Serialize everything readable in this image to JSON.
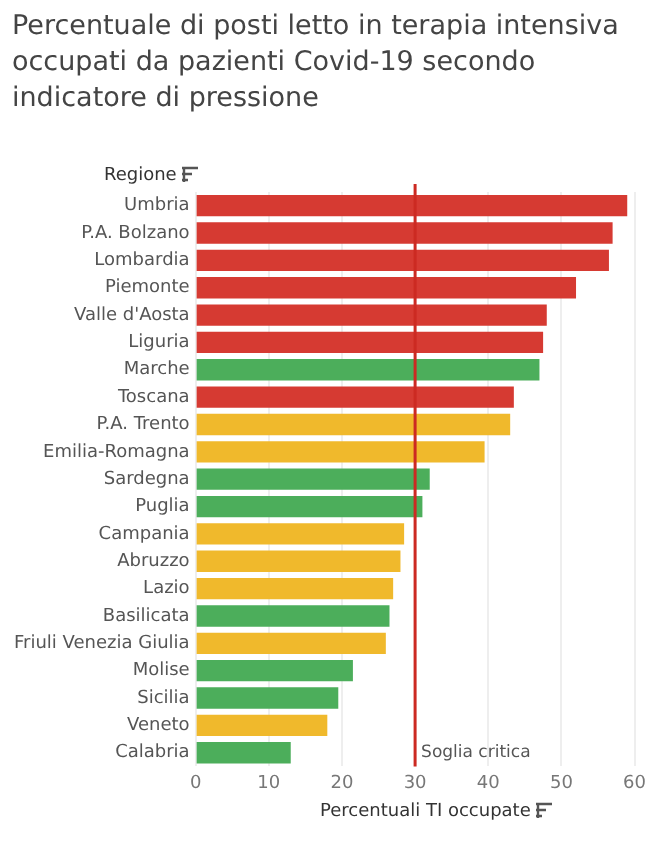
{
  "chart_data": {
    "type": "bar",
    "orientation": "horizontal",
    "title": "Percentuale di posti letto in terapia intensiva occupati da pazienti Covid-19 secondo indicatore di pressione",
    "ylabel": "Regione",
    "xlabel": "Percentuali TI occupate",
    "categories": [
      "Umbria",
      "P.A. Bolzano",
      "Lombardia",
      "Piemonte",
      "Valle d'Aosta",
      "Liguria",
      "Marche",
      "Toscana",
      "P.A. Trento",
      "Emilia-Romagna",
      "Sardegna",
      "Puglia",
      "Campania",
      "Abruzzo",
      "Lazio",
      "Basilicata",
      "Friuli Venezia Giulia",
      "Molise",
      "Sicilia",
      "Veneto",
      "Calabria"
    ],
    "values": [
      59,
      57,
      56.5,
      52,
      48,
      47.5,
      47,
      43.5,
      43,
      39.5,
      32,
      31,
      28.5,
      28,
      27,
      26.5,
      26,
      21.5,
      19.5,
      18,
      13
    ],
    "colors": [
      "#d63a32",
      "#d63a32",
      "#d63a32",
      "#d63a32",
      "#d63a32",
      "#d63a32",
      "#4cae5b",
      "#d63a32",
      "#f0b92c",
      "#f0b92c",
      "#4cae5b",
      "#4cae5b",
      "#f0b92c",
      "#f0b92c",
      "#f0b92c",
      "#4cae5b",
      "#f0b92c",
      "#4cae5b",
      "#4cae5b",
      "#f0b92c",
      "#4cae5b"
    ],
    "xlim": [
      0,
      60
    ],
    "xticks": [
      0,
      10,
      20,
      30,
      40,
      50,
      60
    ],
    "grid": "x",
    "ref_lines": [
      {
        "axis": "x",
        "value": 30,
        "label": "Soglia critica",
        "color": "#cc2a22"
      }
    ]
  }
}
